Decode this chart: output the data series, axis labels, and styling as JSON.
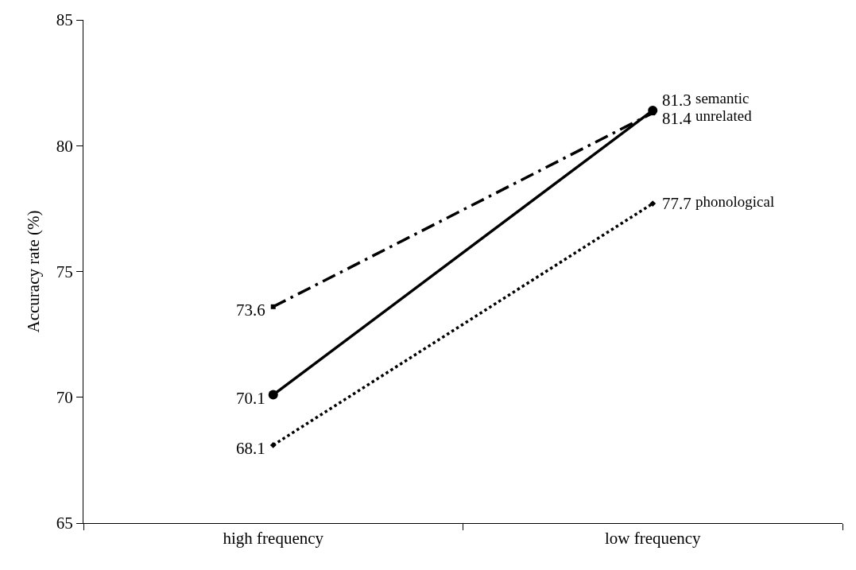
{
  "chart_data": {
    "type": "line",
    "ylabel": "Accuracy rate (%)",
    "categories": [
      "high frequency",
      "low frequency"
    ],
    "series": [
      {
        "name": "semantic",
        "color": "#000000",
        "values": [
          73.6,
          81.3
        ],
        "line_style": "dashdot",
        "marker": "square"
      },
      {
        "name": "unrelated",
        "color": "#000000",
        "values": [
          70.1,
          81.4
        ],
        "line_style": "solid",
        "marker": "circle"
      },
      {
        "name": "phonological",
        "color": "#000000",
        "values": [
          68.1,
          77.7
        ],
        "line_style": "dotted",
        "marker": "diamond"
      }
    ],
    "ylim": [
      65,
      85
    ],
    "yticks": [
      65,
      70,
      75,
      80,
      85
    ],
    "legend": false,
    "data_labels": true
  }
}
